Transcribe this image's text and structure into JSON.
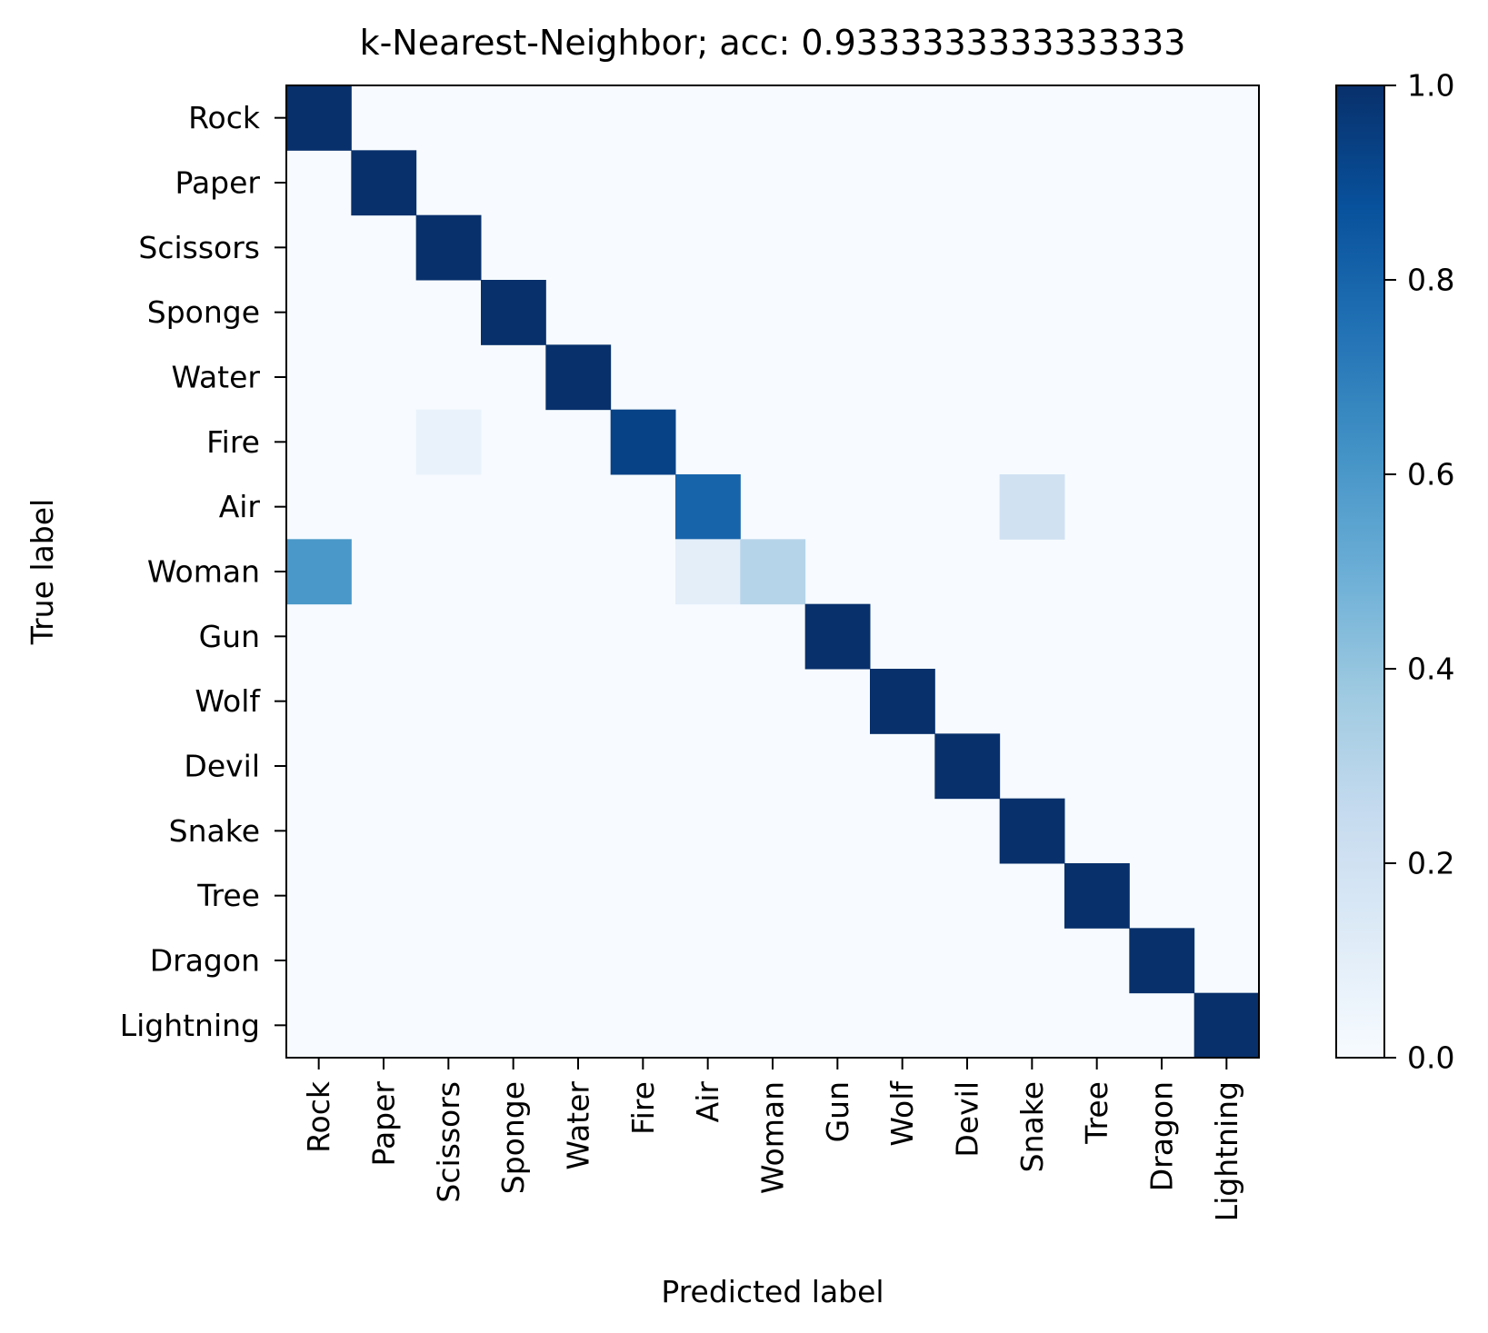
{
  "chart_data": {
    "type": "heatmap",
    "title": "k-Nearest-Neighbor; acc: 0.9333333333333333",
    "xlabel": "Predicted label",
    "ylabel": "True label",
    "x_categories": [
      "Rock",
      "Paper",
      "Scissors",
      "Sponge",
      "Water",
      "Fire",
      "Air",
      "Woman",
      "Gun",
      "Wolf",
      "Devil",
      "Snake",
      "Tree",
      "Dragon",
      "Lightning"
    ],
    "y_categories": [
      "Rock",
      "Paper",
      "Scissors",
      "Sponge",
      "Water",
      "Fire",
      "Air",
      "Woman",
      "Gun",
      "Wolf",
      "Devil",
      "Snake",
      "Tree",
      "Dragon",
      "Lightning"
    ],
    "cells": [
      {
        "row": 0,
        "col": 0,
        "value": 1.0
      },
      {
        "row": 1,
        "col": 1,
        "value": 1.0
      },
      {
        "row": 2,
        "col": 2,
        "value": 1.0
      },
      {
        "row": 3,
        "col": 3,
        "value": 1.0
      },
      {
        "row": 4,
        "col": 4,
        "value": 1.0
      },
      {
        "row": 5,
        "col": 2,
        "value": 0.07
      },
      {
        "row": 5,
        "col": 5,
        "value": 0.93
      },
      {
        "row": 6,
        "col": 6,
        "value": 0.8
      },
      {
        "row": 6,
        "col": 11,
        "value": 0.2
      },
      {
        "row": 7,
        "col": 0,
        "value": 0.6
      },
      {
        "row": 7,
        "col": 6,
        "value": 0.1
      },
      {
        "row": 7,
        "col": 7,
        "value": 0.3
      },
      {
        "row": 8,
        "col": 8,
        "value": 1.0
      },
      {
        "row": 9,
        "col": 9,
        "value": 1.0
      },
      {
        "row": 10,
        "col": 10,
        "value": 1.0
      },
      {
        "row": 11,
        "col": 11,
        "value": 1.0
      },
      {
        "row": 12,
        "col": 12,
        "value": 1.0
      },
      {
        "row": 13,
        "col": 13,
        "value": 1.0
      },
      {
        "row": 14,
        "col": 14,
        "value": 1.0
      }
    ],
    "colorbar": {
      "ticks": [
        "0.0",
        "0.2",
        "0.4",
        "0.6",
        "0.8",
        "1.0"
      ],
      "range": [
        0,
        1
      ],
      "colormap": "Blues"
    },
    "colors": {
      "low": "#f7fbff",
      "high": "#08306b"
    }
  }
}
